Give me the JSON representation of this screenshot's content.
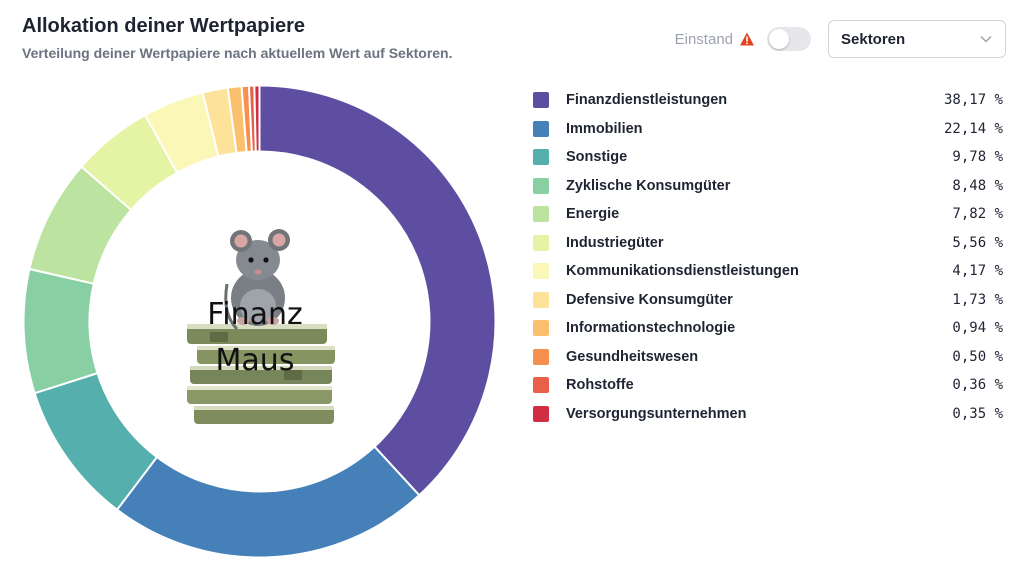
{
  "header": {
    "title": "Allokation deiner Wertpapiere",
    "subtitle": "Verteilung deiner Wertpapiere nach aktuellem Wert auf Sektoren."
  },
  "controls": {
    "einstand_label": "Einstand",
    "warning_color": "#e0451f",
    "toggle_on": false,
    "select_value": "Sektoren"
  },
  "logo": {
    "line1": "Finanz",
    "line2": "Maus"
  },
  "chart_data": {
    "type": "pie",
    "donut": true,
    "categories": [
      "Finanzdienstleistungen",
      "Immobilien",
      "Sonstige",
      "Zyklische Konsumgüter",
      "Energie",
      "Industriegüter",
      "Kommunikationsdienstleistungen",
      "Defensive Konsumgüter",
      "Informationstechnologie",
      "Gesundheitswesen",
      "Rohstoffe",
      "Versorgungsunternehmen"
    ],
    "values": [
      38.17,
      22.14,
      9.78,
      8.48,
      7.82,
      5.56,
      4.17,
      1.73,
      0.94,
      0.5,
      0.36,
      0.35
    ],
    "value_labels": [
      "38,17 %",
      "22,14 %",
      "9,78 %",
      "8,48 %",
      "7,82 %",
      "5,56 %",
      "4,17 %",
      "1,73 %",
      "0,94 %",
      "0,50 %",
      "0,36 %",
      "0,35 %"
    ],
    "colors": [
      "#5d4ea2",
      "#4580b8",
      "#55afac",
      "#88cfa3",
      "#bde3a0",
      "#e5f4a4",
      "#faf7b7",
      "#fde39a",
      "#fbc06d",
      "#f6904f",
      "#e8604a",
      "#d12e45"
    ],
    "legend_position": "right"
  }
}
